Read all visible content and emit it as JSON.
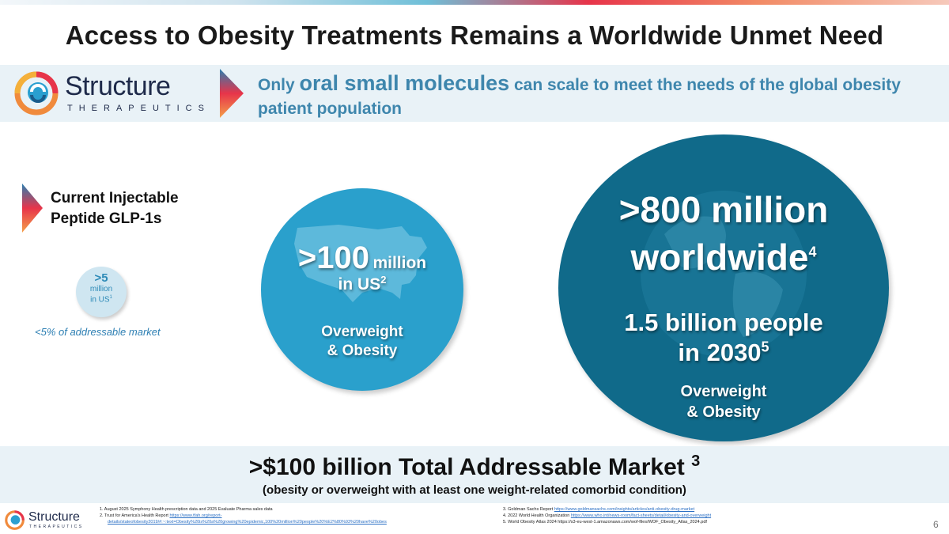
{
  "slide": {
    "title": "Access to Obesity Treatments Remains a Worldwide Unmet Need",
    "page_number": "6"
  },
  "brand": {
    "name": "Structure",
    "subtitle": "THERAPEUTICS",
    "colors": {
      "teal": "#106a8a",
      "blue": "#2aa0cc",
      "tagline": "#3e86ad",
      "red": "#e7344a",
      "orange": "#f28b66"
    }
  },
  "tagline": {
    "part1": "Only ",
    "part2": "oral small molecules",
    "part3": " can scale to meet the needs of the global obesity patient population"
  },
  "left": {
    "label_line1": "Current Injectable",
    "label_line2": "Peptide GLP-1s",
    "circle_value": ">5",
    "circle_unit": "million",
    "circle_region": "in US",
    "circle_ref": "1",
    "note": "<5% of addressable market"
  },
  "us_circle": {
    "value": ">100",
    "unit": "million",
    "region": "in US",
    "ref": "2",
    "label_line1": "Overweight",
    "label_line2": "& Obesity",
    "map_icon": "us-map-icon"
  },
  "world_circle": {
    "line1": ">800 million",
    "line2": "worldwide",
    "ref1": "4",
    "line3": "1.5 billion people",
    "line4": "in 2030",
    "ref2": "5",
    "label_line1": "Overweight",
    "label_line2": "& Obesity",
    "globe_icon": "globe-icon"
  },
  "tam": {
    "headline": ">$100 billion Total Addressable Market",
    "ref": "3",
    "sub": "(obesity or overweight with at least one weight-related comorbid condition)"
  },
  "footnotes": {
    "f1": "1.  August 2025 Symphony Health prescription data and  2025 Evaluate Pharma sales data",
    "f2_text": "2.  Trust for America's Health Report ",
    "f2_link_a": "https://www.tfah.org/report-",
    "f2_link_b": "details/stateofobesity2019/#:~:text=Obesity%20is%20a%20growing%20epidemic,100%20million%20people%20%E2%80%93%20have%20obes",
    "f3_text": "3.  Goldman Sachs Report ",
    "f3_link": "https://www.goldmansachs.com/insights/articles/anti-obesity-drug-market",
    "f4_text": "4.  2022 World Health Organization ",
    "f4_link": "https://www.who.int/news-room/fact-sheets/detail/obesity-and-overweight",
    "f5": "5.  World Obesity Atlas 2024 https://s3-eu-west-1.amazonaws.com/wof-files/WOF_Obesity_Atlas_2024.pdf"
  }
}
